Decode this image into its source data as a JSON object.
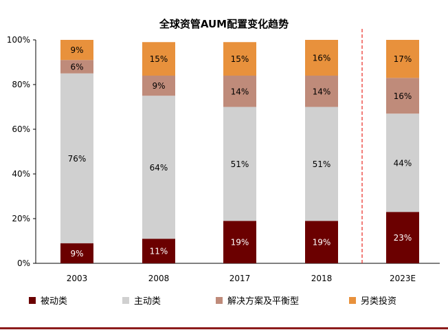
{
  "chart_data": {
    "type": "bar",
    "stacked": true,
    "title": "全球资管AUM配置变化趋势",
    "categories": [
      "2003",
      "2008",
      "2017",
      "2018",
      "2023E"
    ],
    "series": [
      {
        "name": "被动类",
        "color": "#6b0000",
        "label_color": "#ffffff",
        "values": [
          9,
          11,
          19,
          19,
          23
        ],
        "labels": [
          "9%",
          "11%",
          "19%",
          "19%",
          "23%"
        ]
      },
      {
        "name": "主动类",
        "color": "#d0d0d0",
        "label_color": "#000000",
        "values": [
          76,
          64,
          51,
          51,
          44
        ],
        "labels": [
          "76%",
          "64%",
          "51%",
          "51%",
          "44%"
        ]
      },
      {
        "name": "解决方案及平衡型",
        "color": "#bf8b7a",
        "label_color": "#000000",
        "values": [
          6,
          9,
          14,
          14,
          16
        ],
        "labels": [
          "6%",
          "9%",
          "14%",
          "14%",
          "16%"
        ]
      },
      {
        "name": "另类投资",
        "color": "#e8913c",
        "label_color": "#000000",
        "values": [
          9,
          15,
          15,
          16,
          17
        ],
        "labels": [
          "9%",
          "15%",
          "15%",
          "16%",
          "17%"
        ]
      }
    ],
    "y_ticks": [
      "0%",
      "20%",
      "40%",
      "60%",
      "80%",
      "100%"
    ],
    "ylim": [
      0,
      100
    ],
    "grid": false,
    "legend": "bottom",
    "divider_after_category": "2018",
    "divider_color": "#e8261e"
  }
}
